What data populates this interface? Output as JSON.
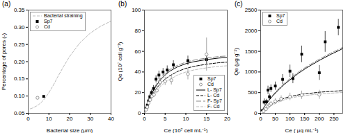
{
  "chart_data": [
    {
      "type": "scatter",
      "title": "(a)",
      "xlabel": "Bacterial size (μm)",
      "ylabel": "Percentage of pores (-)",
      "xlim": [
        0,
        40
      ],
      "ylim": [
        0.05,
        0.35
      ],
      "xticks": [
        0,
        10,
        20,
        30,
        40
      ],
      "yticks": [
        0.05,
        {
          "value": 0.1,
          "label": "0.10"
        },
        0.15,
        {
          "value": 0.2,
          "label": "0.20"
        },
        0.25,
        {
          "value": 0.3,
          "label": "0.30"
        },
        0.35
      ],
      "grid": false,
      "legend": "upper left",
      "series": [
        {
          "name": "Bacterial straining",
          "type": "line",
          "color": "#bbbbbb",
          "line_style": "dashed",
          "x": [
            1,
            2,
            3,
            4,
            5,
            6,
            7,
            8,
            9,
            10,
            12,
            14,
            17,
            20,
            25,
            30,
            35,
            40
          ],
          "values": [
            0.063,
            0.065,
            0.068,
            0.071,
            0.075,
            0.08,
            0.086,
            0.093,
            0.101,
            0.11,
            0.13,
            0.153,
            0.185,
            0.215,
            0.255,
            0.283,
            0.303,
            0.318
          ]
        },
        {
          "name": "Sp7",
          "type": "scatter",
          "color": "black",
          "marker": "square",
          "x": [
            7.5
          ],
          "values": [
            0.099
          ]
        },
        {
          "name": "Cd",
          "type": "scatter",
          "color": "gray",
          "marker": "open_circle",
          "x": [
            4.5
          ],
          "values": [
            0.095
          ]
        }
      ]
    },
    {
      "type": "scatter",
      "title": "(b)",
      "xlabel": "Ce (10⁷ cell mL⁻¹)",
      "ylabel": "Qe (10⁷ cell g⁻¹)",
      "xlim": [
        0,
        20
      ],
      "ylim": [
        0,
        100
      ],
      "xticks": [
        0,
        5,
        10,
        15,
        20
      ],
      "yticks": [
        0,
        20,
        40,
        60,
        80,
        100
      ],
      "grid": false,
      "legend": "lower right",
      "series": [
        {
          "name": "Sp7",
          "type": "scatter",
          "color": "black",
          "marker": "square",
          "x": [
            0.4,
            0.7,
            1.0,
            1.3,
            1.7,
            2.2,
            2.8,
            3.5,
            4.5,
            5.5,
            7.0,
            10.5,
            15.0
          ],
          "values": [
            4.5,
            8.0,
            12.0,
            16.0,
            20.0,
            24.0,
            33.0,
            37.0,
            40.0,
            42.0,
            47.0,
            51.0,
            52.0
          ],
          "errors": [
            1.0,
            1.5,
            2.0,
            2.5,
            2.5,
            3.0,
            3.5,
            4.0,
            3.5,
            4.0,
            4.0,
            4.5,
            5.0
          ]
        },
        {
          "name": "Cd",
          "type": "scatter",
          "color": "gray",
          "marker": "open_circle",
          "x": [
            0.4,
            0.7,
            1.0,
            1.4,
            1.8,
            2.3,
            3.0,
            3.8,
            5.0,
            6.5,
            10.5,
            15.0
          ],
          "values": [
            3.5,
            6.0,
            10.0,
            13.0,
            16.5,
            18.0,
            22.0,
            30.0,
            31.0,
            32.0,
            38.0,
            57.0
          ],
          "errors": [
            0.8,
            1.2,
            1.8,
            2.0,
            2.5,
            2.5,
            3.0,
            3.5,
            4.0,
            4.5,
            5.5,
            16.0
          ]
        },
        {
          "name": "L- Sp7",
          "type": "line",
          "color": "black",
          "line_style": "solid",
          "x": [
            0.0,
            0.5,
            1.0,
            1.5,
            2.0,
            3.0,
            4.0,
            5.0,
            6.0,
            8.0,
            10.0,
            12.0,
            15.0,
            18.0,
            20.0
          ],
          "values": [
            0.0,
            7.0,
            12.5,
            17.0,
            21.0,
            27.5,
            33.0,
            37.0,
            40.5,
            45.0,
            48.0,
            50.0,
            52.0,
            53.5,
            54.0
          ]
        },
        {
          "name": "L- Cd",
          "type": "line",
          "color": "black",
          "line_style": "dashed",
          "x": [
            0.0,
            0.5,
            1.0,
            1.5,
            2.0,
            3.0,
            4.0,
            5.0,
            6.0,
            8.0,
            10.0,
            12.0,
            15.0,
            18.0,
            20.0
          ],
          "values": [
            0.0,
            6.0,
            11.0,
            15.0,
            18.5,
            24.5,
            29.5,
            33.0,
            36.0,
            40.5,
            43.5,
            45.5,
            47.5,
            49.0,
            49.5
          ]
        },
        {
          "name": "F- Sp7",
          "type": "line",
          "color": "#888888",
          "line_style": "long_dashed",
          "x": [
            0.0,
            0.5,
            1.0,
            1.5,
            2.0,
            3.0,
            4.0,
            5.0,
            6.0,
            8.0,
            10.0,
            12.0,
            15.0,
            18.0,
            20.0
          ],
          "values": [
            0.0,
            7.5,
            13.0,
            18.0,
            22.0,
            29.0,
            34.5,
            38.5,
            42.0,
            46.5,
            49.5,
            51.5,
            53.5,
            55.0,
            55.5
          ]
        },
        {
          "name": "F- Cd",
          "type": "line",
          "color": "#bbbbbb",
          "line_style": "dashed",
          "x": [
            0.0,
            0.5,
            1.0,
            1.5,
            2.0,
            3.0,
            4.0,
            5.0,
            6.0,
            8.0,
            10.0,
            12.0,
            15.0,
            18.0,
            20.0
          ],
          "values": [
            0.0,
            5.5,
            9.5,
            13.0,
            16.5,
            22.0,
            26.5,
            30.0,
            32.5,
            37.0,
            40.0,
            42.0,
            44.0,
            45.5,
            46.0
          ]
        }
      ]
    },
    {
      "type": "scatter",
      "title": "(c)",
      "xlabel": "Ce ( μg mL⁻¹)",
      "ylabel": "Qe (μg g⁻¹)",
      "xlim": [
        0,
        280
      ],
      "ylim": [
        0,
        2500
      ],
      "xticks": [
        0,
        50,
        100,
        150,
        200,
        250
      ],
      "yticks": [
        0,
        500,
        1000,
        1500,
        2000,
        2500
      ],
      "grid": false,
      "legend": "upper left",
      "series": [
        {
          "name": "Sp7",
          "type": "scatter",
          "color": "black",
          "marker": "square",
          "x": [
            5,
            12,
            20,
            25,
            30,
            35,
            50,
            75,
            100,
            110,
            140,
            200,
            220,
            265
          ],
          "values": [
            60,
            270,
            280,
            560,
            400,
            600,
            660,
            820,
            1020,
            840,
            1430,
            980,
            1730,
            2080
          ],
          "errors": [
            40,
            80,
            60,
            100,
            70,
            90,
            100,
            120,
            150,
            120,
            200,
            180,
            250,
            200
          ]
        },
        {
          "name": "Cd",
          "type": "scatter",
          "color": "gray",
          "marker": "open_circle",
          "x": [
            5,
            10,
            18,
            25,
            30,
            35,
            50,
            70,
            100,
            140,
            200
          ],
          "values": [
            20,
            50,
            100,
            160,
            200,
            230,
            290,
            350,
            400,
            440,
            450
          ],
          "errors": [
            15,
            25,
            35,
            45,
            50,
            55,
            65,
            75,
            90,
            100,
            110
          ]
        },
        {
          "type": "line",
          "color": "black",
          "line_style": "solid",
          "x": [
            0,
            5,
            10,
            20,
            30,
            40,
            60,
            80,
            100,
            130,
            160,
            200,
            240,
            270,
            280
          ],
          "values": [
            0,
            70,
            130,
            235,
            325,
            410,
            560,
            695,
            810,
            975,
            1115,
            1280,
            1430,
            1530,
            1570
          ]
        },
        {
          "type": "line",
          "color": "black",
          "line_style": "dashed",
          "x": [
            0,
            5,
            10,
            20,
            30,
            40,
            60,
            80,
            100,
            140,
            200,
            260,
            280
          ],
          "values": [
            0,
            35,
            70,
            130,
            180,
            225,
            300,
            360,
            405,
            460,
            510,
            540,
            548
          ]
        },
        {
          "type": "line",
          "color": "#888888",
          "line_style": "long_dashed",
          "x": [
            0,
            5,
            10,
            20,
            30,
            40,
            60,
            80,
            100,
            130,
            160,
            200,
            240,
            270,
            280
          ],
          "values": [
            0,
            75,
            140,
            250,
            345,
            430,
            585,
            720,
            840,
            1005,
            1145,
            1310,
            1460,
            1560,
            1600
          ]
        },
        {
          "type": "line",
          "color": "#bbbbbb",
          "line_style": "dashed",
          "x": [
            0,
            5,
            10,
            20,
            30,
            40,
            60,
            80,
            100,
            140,
            200,
            260,
            280
          ],
          "values": [
            0,
            30,
            60,
            115,
            160,
            200,
            270,
            325,
            368,
            420,
            468,
            495,
            503
          ]
        }
      ]
    }
  ]
}
